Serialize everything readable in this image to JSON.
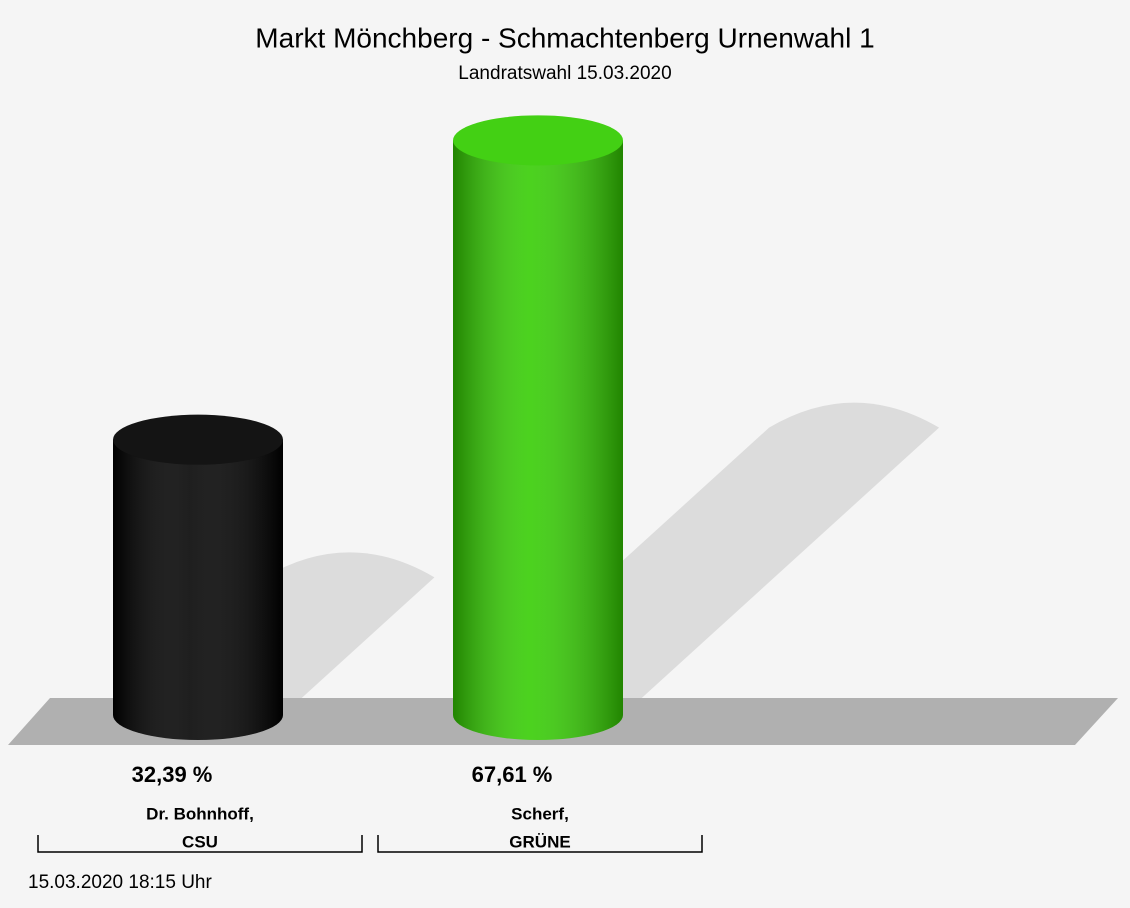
{
  "chart_data": {
    "type": "bar",
    "title": "Markt Mönchberg - Schmachtenberg Urnenwahl 1",
    "subtitle": "Landratswahl 15.03.2020",
    "categories": [
      [
        "Dr. Bohnhoff,",
        "CSU"
      ],
      [
        "Scherf,",
        "GRÜNE"
      ]
    ],
    "values": [
      32.39,
      67.61
    ],
    "value_labels": [
      "32,39 %",
      "67,61 %"
    ],
    "colors": [
      "#000000",
      "#33cc00"
    ],
    "footnote": "15.03.2020 18:15 Uhr"
  }
}
